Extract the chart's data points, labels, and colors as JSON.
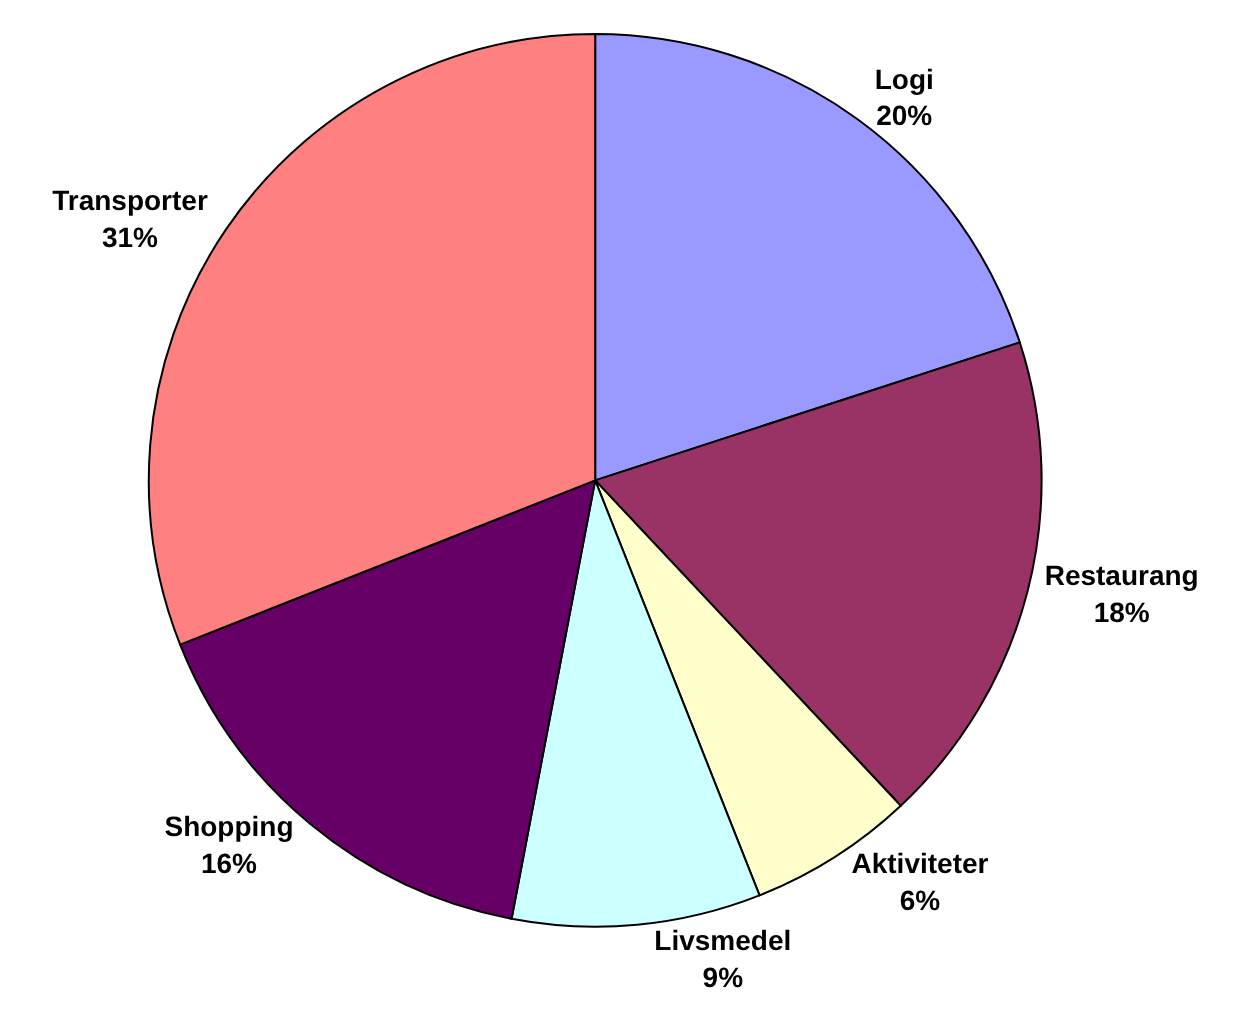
{
  "chart_data": {
    "type": "pie",
    "categories": [
      "Logi",
      "Restaurang",
      "Aktiviteter",
      "Livsmedel",
      "Shopping",
      "Transporter"
    ],
    "values": [
      20,
      18,
      6,
      9,
      16,
      31
    ],
    "value_labels": [
      "20%",
      "18%",
      "6%",
      "9%",
      "16%",
      "31%"
    ],
    "colors": [
      "#9999ff",
      "#993366",
      "#ffffcc",
      "#ccffff",
      "#660066",
      "#ff8080"
    ],
    "legend": false
  }
}
